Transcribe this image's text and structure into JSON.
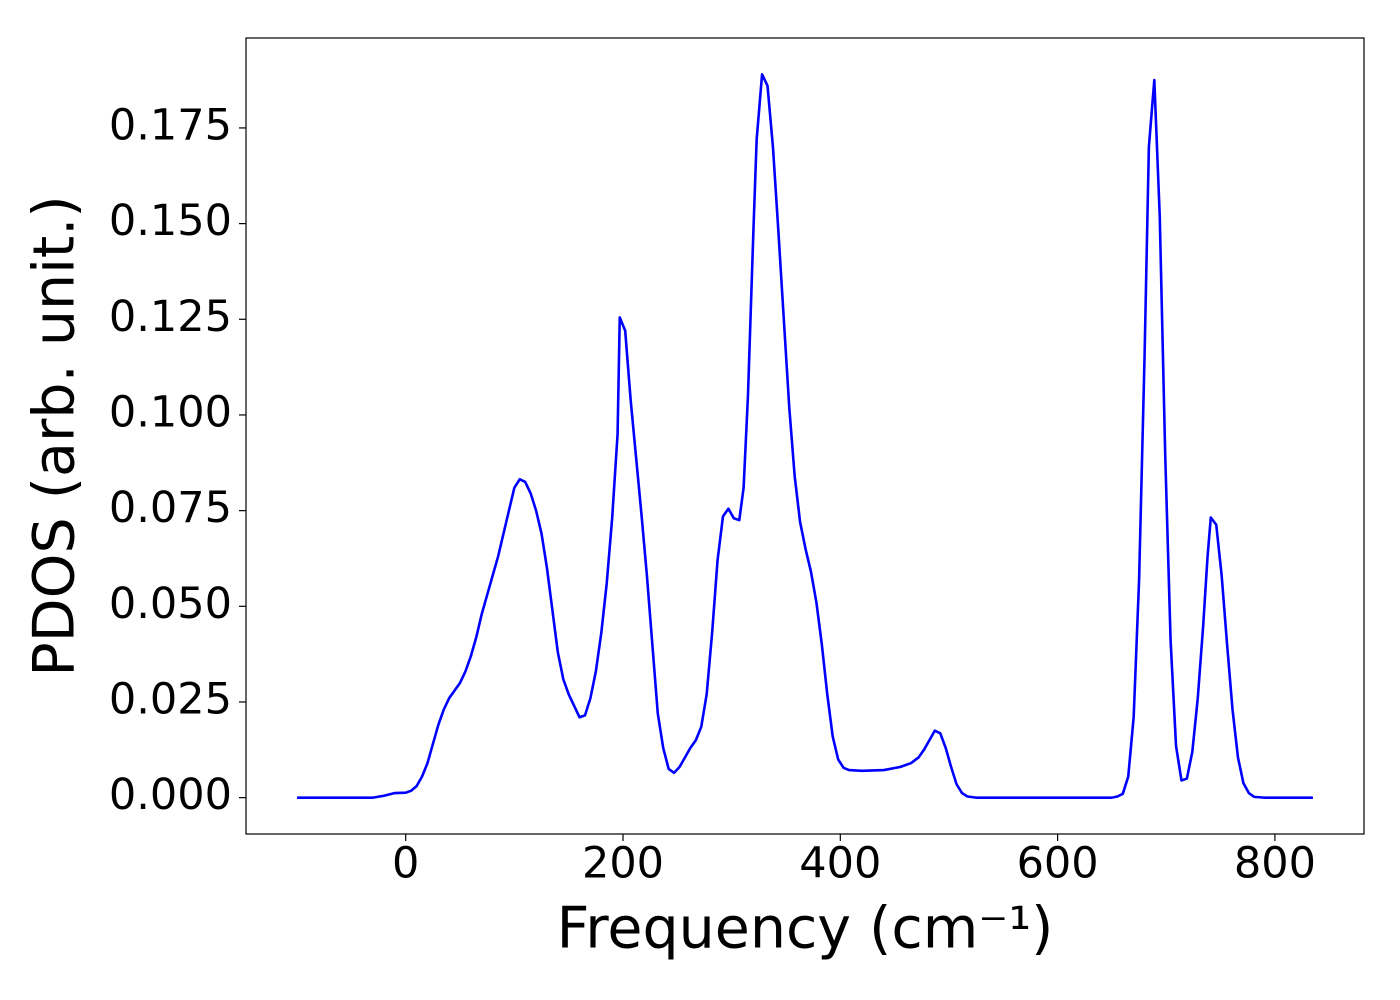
{
  "chart_data": {
    "type": "line",
    "xlabel": "Frequency (cm⁻¹)",
    "ylabel": "PDOS (arb. unit.)",
    "color": "#0000ff",
    "x": [
      -100,
      -30,
      -20,
      -10,
      0,
      5,
      10,
      15,
      20,
      25,
      30,
      35,
      40,
      45,
      50,
      55,
      60,
      65,
      70,
      75,
      80,
      85,
      90,
      95,
      100,
      105,
      110,
      115,
      120,
      125,
      130,
      135,
      140,
      145,
      150,
      155,
      160,
      165,
      170,
      175,
      180,
      185,
      190,
      195,
      197,
      202,
      207,
      212,
      217,
      222,
      227,
      232,
      237,
      242,
      247,
      252,
      257,
      262,
      267,
      272,
      277,
      282,
      287,
      292,
      297,
      302,
      307,
      311,
      315,
      320,
      323,
      328,
      333,
      338,
      343,
      348,
      353,
      358,
      363,
      368,
      373,
      378,
      383,
      388,
      393,
      398,
      403,
      408,
      420,
      440,
      455,
      465,
      472,
      477,
      482,
      487,
      492,
      497,
      502,
      507,
      512,
      517,
      525,
      650,
      655,
      660,
      665,
      670,
      675,
      680,
      684,
      689,
      694,
      699,
      704,
      709,
      714,
      719,
      724,
      729,
      734,
      738,
      741,
      746,
      751,
      756,
      761,
      766,
      771,
      776,
      781,
      790,
      835
    ],
    "values": [
      0,
      0,
      0.0005,
      0.0012,
      0.0013,
      0.0018,
      0.003,
      0.0055,
      0.009,
      0.014,
      0.019,
      0.023,
      0.026,
      0.028,
      0.03,
      0.033,
      0.037,
      0.042,
      0.048,
      0.053,
      0.058,
      0.063,
      0.069,
      0.075,
      0.081,
      0.0832,
      0.0825,
      0.0795,
      0.075,
      0.069,
      0.06,
      0.049,
      0.038,
      0.031,
      0.027,
      0.024,
      0.021,
      0.0215,
      0.026,
      0.033,
      0.043,
      0.056,
      0.073,
      0.095,
      0.1255,
      0.122,
      0.104,
      0.089,
      0.074,
      0.058,
      0.04,
      0.022,
      0.013,
      0.0075,
      0.0065,
      0.008,
      0.0105,
      0.013,
      0.015,
      0.0185,
      0.027,
      0.043,
      0.062,
      0.0735,
      0.0755,
      0.073,
      0.0725,
      0.081,
      0.105,
      0.148,
      0.172,
      0.189,
      0.186,
      0.17,
      0.148,
      0.125,
      0.102,
      0.084,
      0.072,
      0.065,
      0.059,
      0.051,
      0.04,
      0.027,
      0.016,
      0.01,
      0.0078,
      0.0072,
      0.007,
      0.0072,
      0.008,
      0.009,
      0.0105,
      0.0125,
      0.015,
      0.0175,
      0.0168,
      0.013,
      0.008,
      0.0035,
      0.0012,
      0.0003,
      0,
      0,
      0.0003,
      0.001,
      0.0055,
      0.021,
      0.057,
      0.115,
      0.17,
      0.1875,
      0.152,
      0.09,
      0.041,
      0.0135,
      0.0045,
      0.005,
      0.012,
      0.026,
      0.045,
      0.063,
      0.0732,
      0.0713,
      0.058,
      0.04,
      0.023,
      0.0105,
      0.0038,
      0.0012,
      0.0002,
      0,
      0
    ],
    "xlim": [
      -147,
      882
    ],
    "ylim": [
      -0.0095,
      0.1985
    ],
    "xticks": [
      0,
      200,
      400,
      600,
      800
    ],
    "yticks": [
      {
        "value": 0,
        "label": "0.000"
      },
      0.025,
      {
        "value": 0.05,
        "label": "0.050"
      },
      0.075,
      {
        "value": 0.1,
        "label": "0.100"
      },
      0.125,
      {
        "value": 0.15,
        "label": "0.150"
      },
      0.175
    ],
    "grid": false
  }
}
